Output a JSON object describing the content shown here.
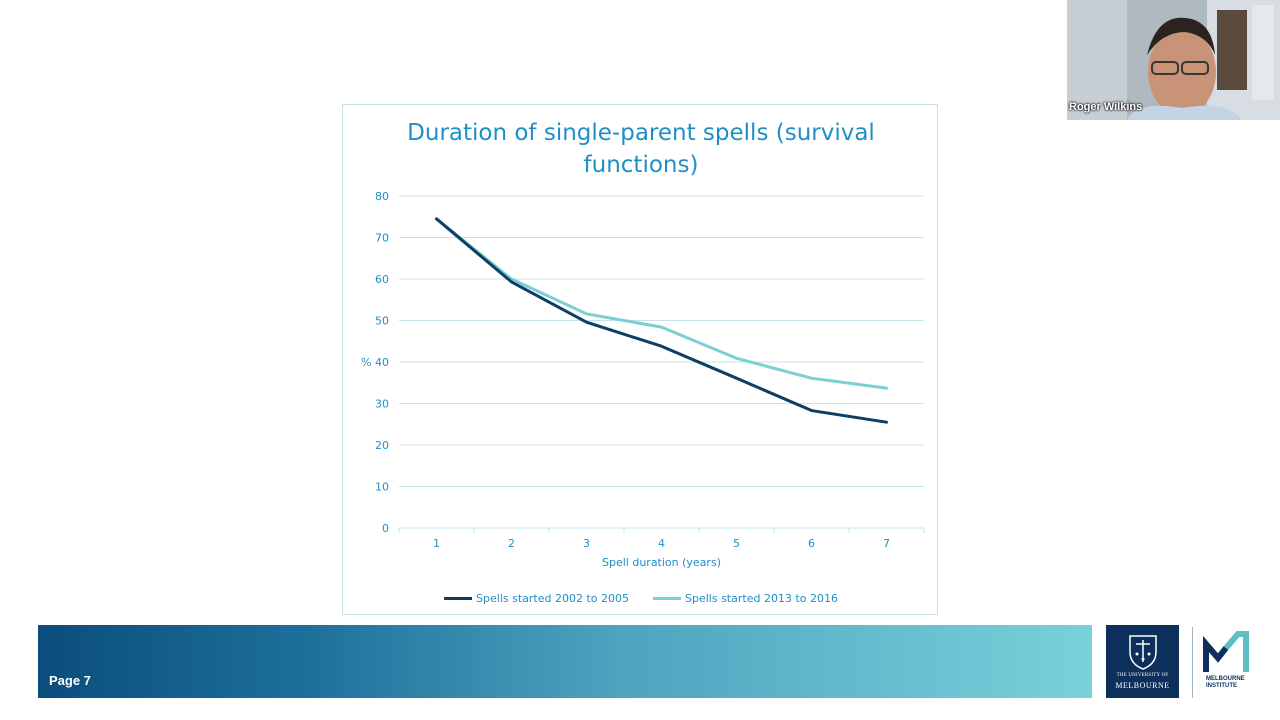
{
  "colors": {
    "accent": "#1f8fc6",
    "series1": "#0c3f66",
    "series2": "#7ccfd2",
    "grid": "#c5e3ea",
    "uni_navy": "#0c2f5c"
  },
  "webcam": {
    "name": "Roger Wilkins"
  },
  "footer": {
    "page_label": "Page 7"
  },
  "logos": {
    "university_line1": "THE UNIVERSITY OF",
    "university_line2": "MELBOURNE",
    "institute_line1": "MELBOURNE",
    "institute_line2": "INSTITUTE"
  },
  "chart_data": {
    "type": "line",
    "title": "Duration of single-parent spells (survival functions)",
    "xlabel": "Spell duration (years)",
    "ylabel": "%",
    "categories": [
      "1",
      "2",
      "3",
      "4",
      "5",
      "6",
      "7"
    ],
    "ylim": [
      0,
      80
    ],
    "yticks": [
      0,
      10,
      20,
      30,
      40,
      50,
      60,
      70,
      80
    ],
    "grid": true,
    "legend_position": "bottom",
    "series": [
      {
        "name": "Spells started 2002 to 2005",
        "values": [
          74.5,
          59.3,
          49.6,
          43.8,
          36.1,
          28.3,
          25.5
        ],
        "color": "#0c3f66"
      },
      {
        "name": "Spells started 2013 to 2016",
        "values": [
          74.5,
          60.0,
          51.6,
          48.4,
          40.9,
          36.1,
          33.7
        ],
        "color": "#7ccfd2"
      }
    ]
  }
}
